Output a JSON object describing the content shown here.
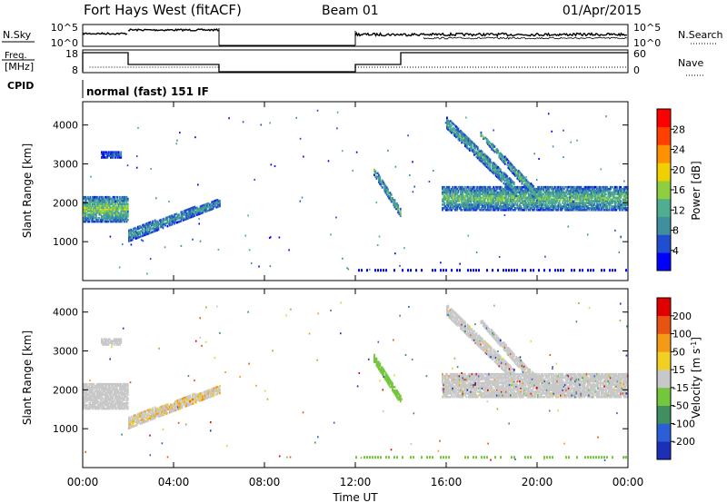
{
  "header": {
    "station": "Fort Hays West (fitACF)",
    "beam": "Beam 01",
    "date": "01/Apr/2015"
  },
  "nsky_panel": {
    "left_label": "N.Sky",
    "right_label": "N.Search",
    "left_ticks": [
      "10^5",
      "10^0"
    ],
    "right_ticks": [
      "10^5",
      "10^0"
    ]
  },
  "freq_panel": {
    "left_label_line1": "Freq.",
    "left_label_line2": "[MHz]",
    "right_label": "Nave",
    "left_ticks": [
      "18",
      "8"
    ],
    "right_ticks": [
      "60",
      "0"
    ]
  },
  "cpid": {
    "label": "CPID",
    "mode": "normal (fast) 151 IF"
  },
  "colors": {
    "power": [
      "#0000ff",
      "#1f4fd0",
      "#3f8f9f",
      "#4fae8f",
      "#8fcf3f",
      "#f0d000",
      "#ff9000",
      "#ff4000",
      "#ff0000"
    ],
    "velocity": [
      "#1c2fb8",
      "#2b5fd8",
      "#3f8f60",
      "#74c63c",
      "#c8c8c8",
      "#f2d021",
      "#f59a16",
      "#ea5212",
      "#e10000"
    ],
    "scatter_gray": "#c0c0c0"
  },
  "chart_data": [
    {
      "type": "heatmap",
      "name": "Power",
      "ylabel": "Slant Range [km]",
      "ylim": [
        0,
        4600
      ],
      "yticks": [
        1000,
        2000,
        3000,
        4000
      ],
      "xlim": [
        0,
        24
      ],
      "colorbar_label": "Power [dB]",
      "colorbar_ticks": [
        "28",
        "24",
        "20",
        "16",
        "12",
        "8",
        "4"
      ],
      "bands": [
        {
          "t0": 0.0,
          "t1": 2.0,
          "r0": 1500,
          "r1": 2150,
          "p": 14
        },
        {
          "t0": 2.0,
          "t1": 6.0,
          "r_start": [
            1000,
            1300
          ],
          "r_end": [
            1900,
            2100
          ],
          "p": 8
        },
        {
          "t0": 0.8,
          "t1": 1.7,
          "r0": 3150,
          "r1": 3300,
          "p": 4
        },
        {
          "t0": 12.8,
          "t1": 14.0,
          "r_start": [
            2700,
            2900
          ],
          "r_end": [
            1600,
            1800
          ],
          "p": 12
        },
        {
          "t0": 15.8,
          "t1": 24.0,
          "r0": 1800,
          "r1": 2400,
          "p": 12
        },
        {
          "t0": 16.0,
          "t1": 19.0,
          "r_start": [
            3900,
            4200
          ],
          "r_end": [
            2200,
            2500
          ],
          "p": 10
        },
        {
          "t0": 17.5,
          "t1": 20.0,
          "r_start": [
            3700,
            3800
          ],
          "r_end": [
            2000,
            2300
          ],
          "p": 12
        }
      ]
    },
    {
      "type": "heatmap",
      "name": "Velocity",
      "ylabel": "Slant Range [km]",
      "ylim": [
        0,
        4600
      ],
      "yticks": [
        1000,
        2000,
        3000,
        4000
      ],
      "xlim": [
        0,
        24
      ],
      "colorbar_label": "Velocity [m s^-1]",
      "colorbar_ticks": [
        "200",
        "100",
        "50",
        "15",
        "-15",
        "-50",
        "-100",
        "-200"
      ],
      "xlabel": "Time UT",
      "xticks": [
        "00:00",
        "04:00",
        "08:00",
        "12:00",
        "16:00",
        "20:00",
        "00:00"
      ],
      "xtick_values": [
        0,
        4,
        8,
        12,
        16,
        20,
        24
      ]
    }
  ]
}
